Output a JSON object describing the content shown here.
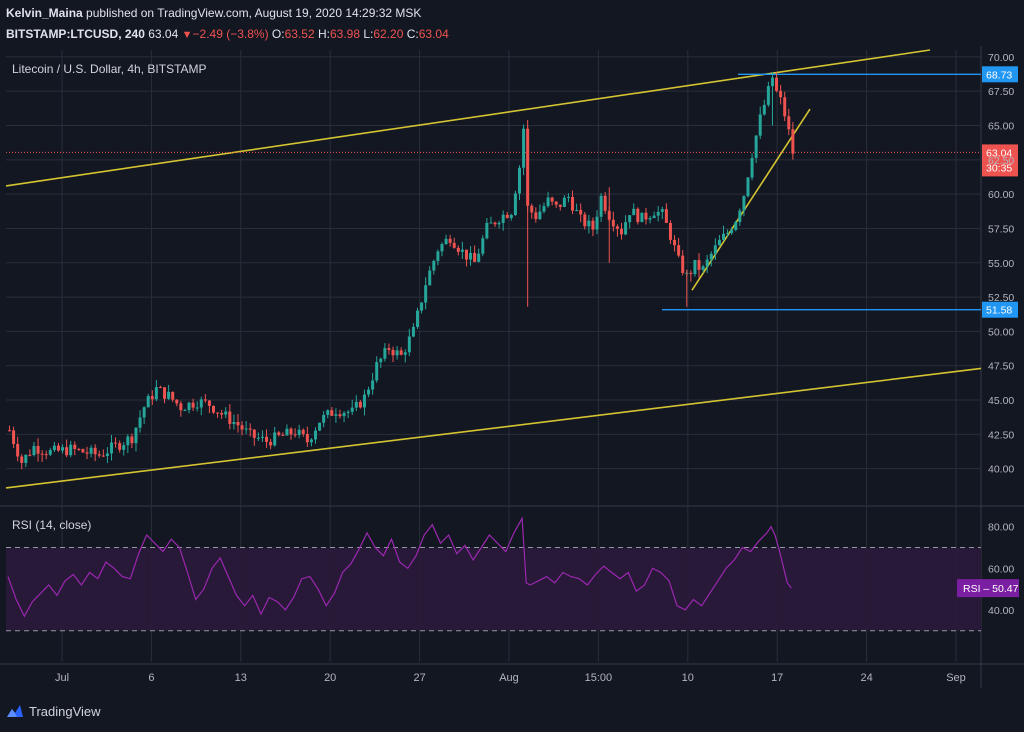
{
  "header": {
    "author": "Kelvin_Maina",
    "published_text": "published on TradingView.com, August 19, 2020 14:29:32 MSK",
    "symbol": "BITSTAMP:LTCUSD, 240",
    "last": "63.04",
    "change": "−2.49 (−3.8%)",
    "o_label": "O:",
    "o": "63.52",
    "h_label": "H:",
    "h": "63.98",
    "l_label": "L:",
    "l": "62.20",
    "c_label": "C:",
    "c": "63.04"
  },
  "colors": {
    "background": "#131722",
    "grid": "#2a2e39",
    "up": "#26a69a",
    "down": "#ef5350",
    "trendline": "#d4c431",
    "hline": "#2196f3",
    "price_line": "#ef5350",
    "rsi_line": "#9c27b0",
    "rsi_band": "#2a1a3a"
  },
  "footer": {
    "brand": "TradingView",
    "icon": "tradingview-logo-icon"
  },
  "chart_data": [
    {
      "type": "candlestick",
      "title": "Litecoin / U.S. Dollar, 4h, BITSTAMP",
      "x_ticks": [
        "Jul",
        "6",
        "13",
        "20",
        "27",
        "Aug",
        "15:00",
        "10",
        "17",
        "24",
        "Sep"
      ],
      "y_ticks": [
        "40.00",
        "42.50",
        "45.00",
        "47.50",
        "50.00",
        "52.50",
        "55.00",
        "57.50",
        "60.00",
        "62.50",
        "65.00",
        "67.50",
        "70.00"
      ],
      "ylim": [
        37.5,
        70.5
      ],
      "grid": true,
      "path": [
        [
          0,
          42.8
        ],
        [
          3,
          40.5
        ],
        [
          6,
          41.6
        ],
        [
          10,
          41.2
        ],
        [
          15,
          41.4
        ],
        [
          22,
          41.0
        ],
        [
          27,
          41.8
        ],
        [
          30,
          42.3
        ],
        [
          33,
          44.5
        ],
        [
          36,
          45.8
        ],
        [
          39,
          45.3
        ],
        [
          42,
          44.5
        ],
        [
          46,
          44.9
        ],
        [
          49,
          44.7
        ],
        [
          52,
          44.0
        ],
        [
          56,
          43.2
        ],
        [
          59,
          42.4
        ],
        [
          63,
          42.0
        ],
        [
          66,
          42.3
        ],
        [
          70,
          42.7
        ],
        [
          73,
          42.0
        ],
        [
          76,
          43.5
        ],
        [
          80,
          44.3
        ],
        [
          84,
          44.1
        ],
        [
          87,
          45.2
        ],
        [
          90,
          47.5
        ],
        [
          93,
          48.8
        ],
        [
          96,
          48.2
        ],
        [
          99,
          50.0
        ],
        [
          102,
          53.5
        ],
        [
          105,
          56.0
        ],
        [
          108,
          56.9
        ],
        [
          111,
          55.8
        ],
        [
          114,
          55.0
        ],
        [
          117,
          57.5
        ],
        [
          120,
          58.3
        ],
        [
          123,
          58.8
        ],
        [
          125,
          62.0
        ],
        [
          126,
          64.8
        ],
        [
          127,
          59.0
        ],
        [
          129,
          58.4
        ],
        [
          132,
          59.5
        ],
        [
          134,
          59.0
        ],
        [
          137,
          59.8
        ],
        [
          140,
          58.1
        ],
        [
          143,
          57.5
        ],
        [
          145,
          59.8
        ],
        [
          147,
          58.5
        ],
        [
          150,
          57.3
        ],
        [
          152,
          58.8
        ],
        [
          155,
          58.2
        ],
        [
          158,
          58.8
        ],
        [
          160,
          58.5
        ],
        [
          162,
          57.0
        ],
        [
          164,
          55.1
        ],
        [
          166,
          54.0
        ],
        [
          168,
          54.8
        ],
        [
          170,
          54.5
        ],
        [
          172,
          55.6
        ],
        [
          174,
          56.5
        ],
        [
          176,
          57.2
        ],
        [
          178,
          58.2
        ],
        [
          180,
          60.0
        ],
        [
          182,
          63.0
        ],
        [
          184,
          65.5
        ],
        [
          186,
          67.5
        ],
        [
          187,
          68.5
        ],
        [
          188,
          67.4
        ],
        [
          189,
          66.8
        ],
        [
          190,
          65.8
        ],
        [
          191,
          64.5
        ],
        [
          192,
          63.04
        ]
      ],
      "rsi": {
        "label": "RSI (14, close)",
        "value": "50.47",
        "badge": "RSI – 50.47",
        "levels": [
          70,
          30
        ],
        "y_ticks": [
          "80.00",
          "60.00",
          "40.00"
        ],
        "path": [
          [
            0,
            56
          ],
          [
            2,
            45
          ],
          [
            4,
            37
          ],
          [
            6,
            44
          ],
          [
            8,
            48
          ],
          [
            10,
            52
          ],
          [
            12,
            47
          ],
          [
            14,
            54
          ],
          [
            16,
            57
          ],
          [
            18,
            52
          ],
          [
            20,
            58
          ],
          [
            22,
            55
          ],
          [
            24,
            63
          ],
          [
            26,
            60
          ],
          [
            28,
            56
          ],
          [
            30,
            55
          ],
          [
            32,
            67
          ],
          [
            34,
            76
          ],
          [
            36,
            72
          ],
          [
            38,
            68
          ],
          [
            40,
            74
          ],
          [
            42,
            70
          ],
          [
            44,
            58
          ],
          [
            46,
            45
          ],
          [
            48,
            50
          ],
          [
            50,
            60
          ],
          [
            52,
            65
          ],
          [
            54,
            56
          ],
          [
            56,
            47
          ],
          [
            58,
            42
          ],
          [
            60,
            47
          ],
          [
            62,
            38
          ],
          [
            64,
            46
          ],
          [
            66,
            44
          ],
          [
            68,
            40
          ],
          [
            70,
            46
          ],
          [
            72,
            55
          ],
          [
            74,
            56
          ],
          [
            76,
            50
          ],
          [
            78,
            42
          ],
          [
            80,
            48
          ],
          [
            82,
            58
          ],
          [
            84,
            62
          ],
          [
            86,
            69
          ],
          [
            88,
            77
          ],
          [
            90,
            70
          ],
          [
            92,
            66
          ],
          [
            94,
            74
          ],
          [
            96,
            63
          ],
          [
            98,
            60
          ],
          [
            100,
            66
          ],
          [
            102,
            76
          ],
          [
            104,
            81
          ],
          [
            106,
            72
          ],
          [
            108,
            76
          ],
          [
            110,
            67
          ],
          [
            112,
            71
          ],
          [
            114,
            64
          ],
          [
            116,
            70
          ],
          [
            118,
            76
          ],
          [
            120,
            72
          ],
          [
            122,
            68
          ],
          [
            124,
            77
          ],
          [
            126,
            84
          ],
          [
            127,
            53
          ],
          [
            128,
            52
          ],
          [
            130,
            54
          ],
          [
            132,
            56
          ],
          [
            134,
            53
          ],
          [
            136,
            58
          ],
          [
            138,
            56
          ],
          [
            140,
            55
          ],
          [
            142,
            52
          ],
          [
            144,
            57
          ],
          [
            146,
            61
          ],
          [
            148,
            58
          ],
          [
            150,
            55
          ],
          [
            152,
            58
          ],
          [
            154,
            49
          ],
          [
            156,
            52
          ],
          [
            158,
            60
          ],
          [
            160,
            58
          ],
          [
            162,
            54
          ],
          [
            164,
            42
          ],
          [
            166,
            40
          ],
          [
            168,
            45
          ],
          [
            170,
            42
          ],
          [
            172,
            48
          ],
          [
            174,
            54
          ],
          [
            176,
            60
          ],
          [
            178,
            64
          ],
          [
            180,
            70
          ],
          [
            182,
            68
          ],
          [
            184,
            73
          ],
          [
            186,
            77
          ],
          [
            187,
            80
          ],
          [
            188,
            76
          ],
          [
            189,
            69
          ],
          [
            190,
            61
          ],
          [
            191,
            53
          ],
          [
            192,
            50.47
          ]
        ]
      },
      "horizontal_lines": [
        {
          "value": 68.73,
          "label": "68.73"
        },
        {
          "value": 51.58,
          "label": "51.58"
        }
      ],
      "current_price": {
        "value": 63.04,
        "label": "63.04",
        "countdown": "30:35"
      }
    }
  ]
}
